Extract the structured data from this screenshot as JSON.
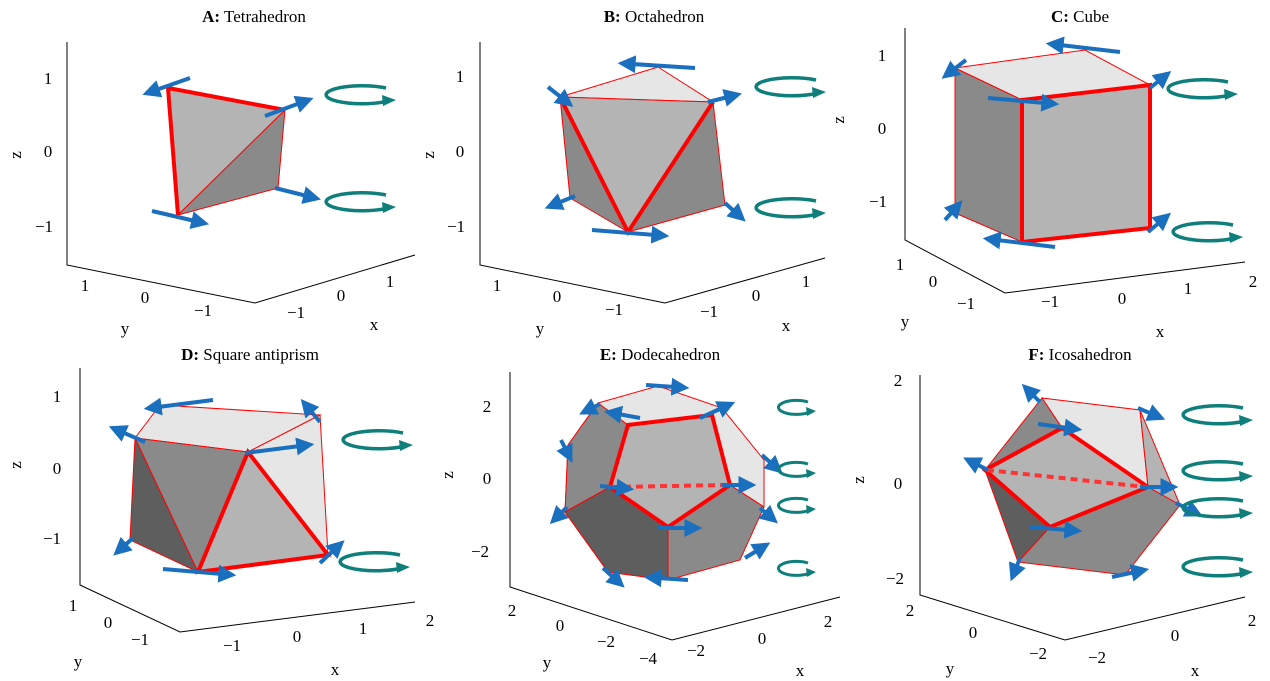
{
  "panels": [
    {
      "letter": "A:",
      "name": "Tetrahedron",
      "z_label": "z",
      "y_label": "y",
      "x_label": "x",
      "z_ticks": [
        "1",
        "0",
        "−1"
      ],
      "y_ticks": [
        "1",
        "0",
        "−1"
      ],
      "x_ticks": [
        "−1",
        "0",
        "1"
      ]
    },
    {
      "letter": "B:",
      "name": "Octahedron",
      "z_label": "z",
      "y_label": "y",
      "x_label": "x",
      "z_ticks": [
        "1",
        "0",
        "−1"
      ],
      "y_ticks": [
        "1",
        "0",
        "−1"
      ],
      "x_ticks": [
        "−1",
        "0",
        "1"
      ]
    },
    {
      "letter": "C:",
      "name": "Cube",
      "z_label": "z",
      "y_label": "y",
      "x_label": "x",
      "z_ticks": [
        "1",
        "0",
        "−1"
      ],
      "y_ticks": [
        "1",
        "0",
        "−1"
      ],
      "x_ticks": [
        "−1",
        "0",
        "1",
        "2"
      ]
    },
    {
      "letter": "D:",
      "name": "Square antiprism",
      "z_label": "z",
      "y_label": "y",
      "x_label": "x",
      "z_ticks": [
        "1",
        "0",
        "−1"
      ],
      "y_ticks": [
        "1",
        "0",
        "−1"
      ],
      "x_ticks": [
        "−1",
        "0",
        "1",
        "2"
      ]
    },
    {
      "letter": "E:",
      "name": "Dodecahedron",
      "z_label": "z",
      "y_label": "y",
      "x_label": "x",
      "z_ticks": [
        "2",
        "0",
        "−2"
      ],
      "y_ticks": [
        "2",
        "0",
        "−2",
        "−4"
      ],
      "x_ticks": [
        "−2",
        "0",
        "2"
      ]
    },
    {
      "letter": "F:",
      "name": "Icosahedron",
      "z_label": "z",
      "y_label": "y",
      "x_label": "x",
      "z_ticks": [
        "2",
        "0",
        "−2"
      ],
      "y_ticks": [
        "2",
        "0",
        "−2"
      ],
      "x_ticks": [
        "−2",
        "0",
        "2"
      ]
    }
  ]
}
